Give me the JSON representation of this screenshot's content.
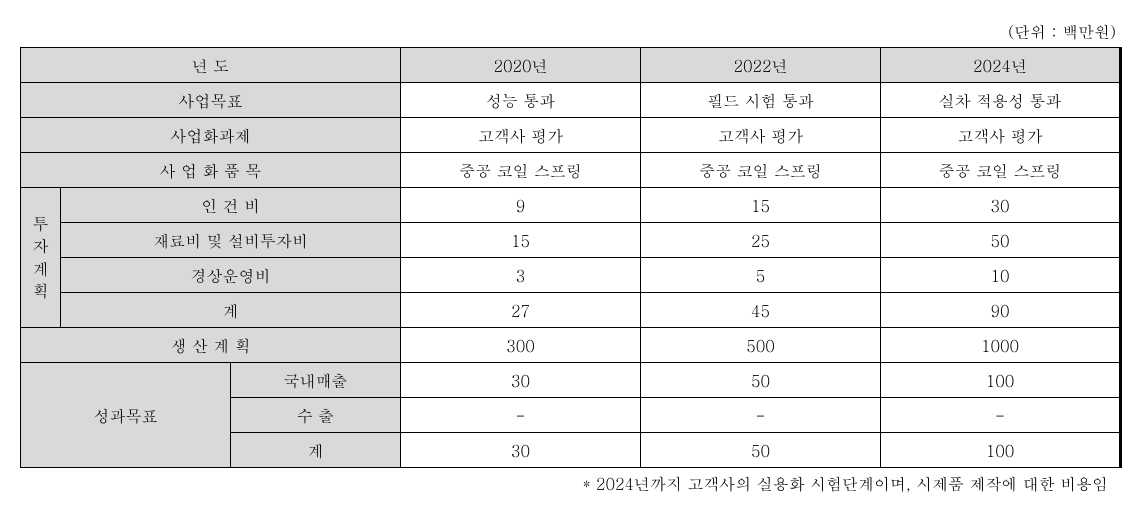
{
  "unit_label": "(단위 : 백만원)",
  "header": {
    "year_label": "년      도",
    "years": [
      "2020년",
      "2022년",
      "2024년"
    ]
  },
  "rows": {
    "business_goal_label": "사업목표",
    "business_goal": [
      "성능 통과",
      "필드 시험 통과",
      "실차 적용성 통과"
    ],
    "commercial_task_label": "사업화과제",
    "commercial_task": [
      "고객사 평가",
      "고객사 평가",
      "고객사 평가"
    ],
    "commercial_item_label": "사 업 화  품 목",
    "commercial_item": [
      "중공 코일 스프링",
      "중공 코일 스프링",
      "중공 코일 스프링"
    ]
  },
  "invest": {
    "group_label_chars": [
      "투",
      "자",
      "계",
      "획"
    ],
    "labor_label": "인  건  비",
    "labor": [
      "9",
      "15",
      "30"
    ],
    "material_label": "재료비 및 설비투자비",
    "material": [
      "15",
      "25",
      "50"
    ],
    "operating_label": "경상운영비",
    "operating": [
      "3",
      "5",
      "10"
    ],
    "subtotal_label": "계",
    "subtotal": [
      "27",
      "45",
      "90"
    ]
  },
  "production": {
    "label": "생 산 계 획",
    "values": [
      "300",
      "500",
      "1000"
    ]
  },
  "outcome": {
    "group_label": "성과목표",
    "domestic_label": "국내매출",
    "domestic": [
      "30",
      "50",
      "100"
    ],
    "export_label": "수  출",
    "export": [
      "-",
      "-",
      "-"
    ],
    "total_label": "계",
    "total": [
      "30",
      "50",
      "100"
    ]
  },
  "footnote": "* 2024년까지 고객사의 실용화 시험단계이며, 시제품 제작에 대한 비용임"
}
